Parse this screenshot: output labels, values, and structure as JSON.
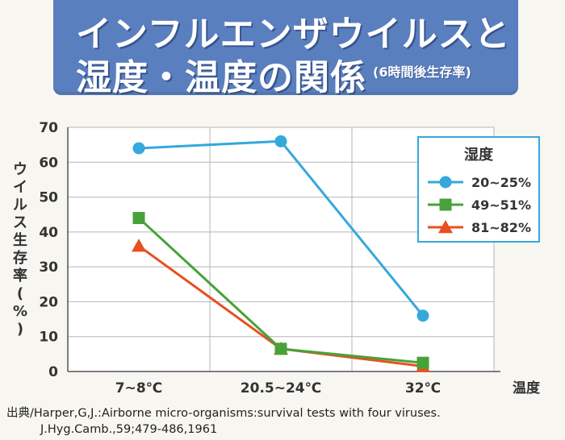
{
  "title": {
    "line1": "インフルエンザウイルスと",
    "line2": "湿度・温度の関係",
    "note": "(6時間後生存率)"
  },
  "source": {
    "line1": "出典/Harper,G,J.:Airborne micro-organisms:survival tests with four viruses.",
    "line2": "J.Hyg.Camb.,59;479-486,1961"
  },
  "colors": {
    "series1": "#35a8dc",
    "series2": "#47a23a",
    "series3": "#e8501f",
    "title_bg": "#5a7fbf"
  },
  "chart_data": {
    "type": "line",
    "categories": [
      "7~8℃",
      "20.5~24℃",
      "32℃"
    ],
    "xlabel": "温度",
    "ylabel": "ウイルス生存率(%)",
    "ylim": [
      0,
      70
    ],
    "yticks": [
      0,
      10,
      20,
      30,
      40,
      50,
      60,
      70
    ],
    "grid": true,
    "legend_title": "湿度",
    "legend_position": "top-right",
    "series": [
      {
        "name": "20~25%",
        "marker": "circle",
        "values": [
          64,
          66,
          16
        ]
      },
      {
        "name": "49~51%",
        "marker": "square",
        "values": [
          44,
          6.5,
          2.5
        ]
      },
      {
        "name": "81~82%",
        "marker": "triangle",
        "values": [
          36,
          6.5,
          1.5
        ]
      }
    ]
  }
}
